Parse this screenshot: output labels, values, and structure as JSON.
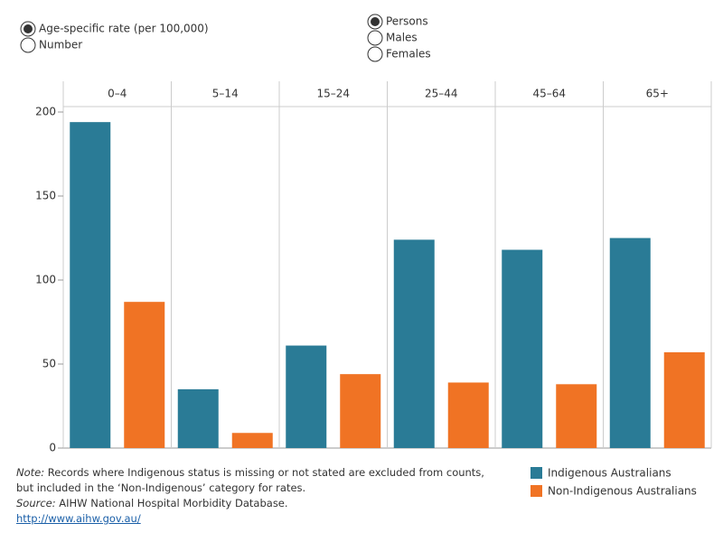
{
  "controls": {
    "measure": {
      "options": [
        "Age-specific rate (per 100,000)",
        "Number"
      ],
      "selected": 0
    },
    "sex": {
      "options": [
        "Persons",
        "Males",
        "Females"
      ],
      "selected": 0
    }
  },
  "chart_data": {
    "type": "bar",
    "categories": [
      "0–4",
      "5–14",
      "15–24",
      "25–44",
      "45–64",
      "65+"
    ],
    "series": [
      {
        "name": "Indigenous Australians",
        "color": "#2a7b96",
        "values": [
          194,
          35,
          61,
          124,
          118,
          125
        ]
      },
      {
        "name": "Non-Indigenous Australians",
        "color": "#f07324",
        "values": [
          87,
          9,
          44,
          39,
          38,
          57
        ]
      }
    ],
    "ylim": [
      0,
      200
    ],
    "yticks": [
      0,
      50,
      100,
      150,
      200
    ],
    "grid": false,
    "legend": "bottom-right"
  },
  "notes": {
    "note_label": "Note:",
    "note_text": "Records where Indigenous status is missing or not stated are excluded from counts, but included in the ‘Non-Indigenous’ category for rates.",
    "source_label": "Source:",
    "source_text": "AIHW National Hospital Morbidity Database.",
    "link": "http://www.aihw.gov.au/"
  }
}
